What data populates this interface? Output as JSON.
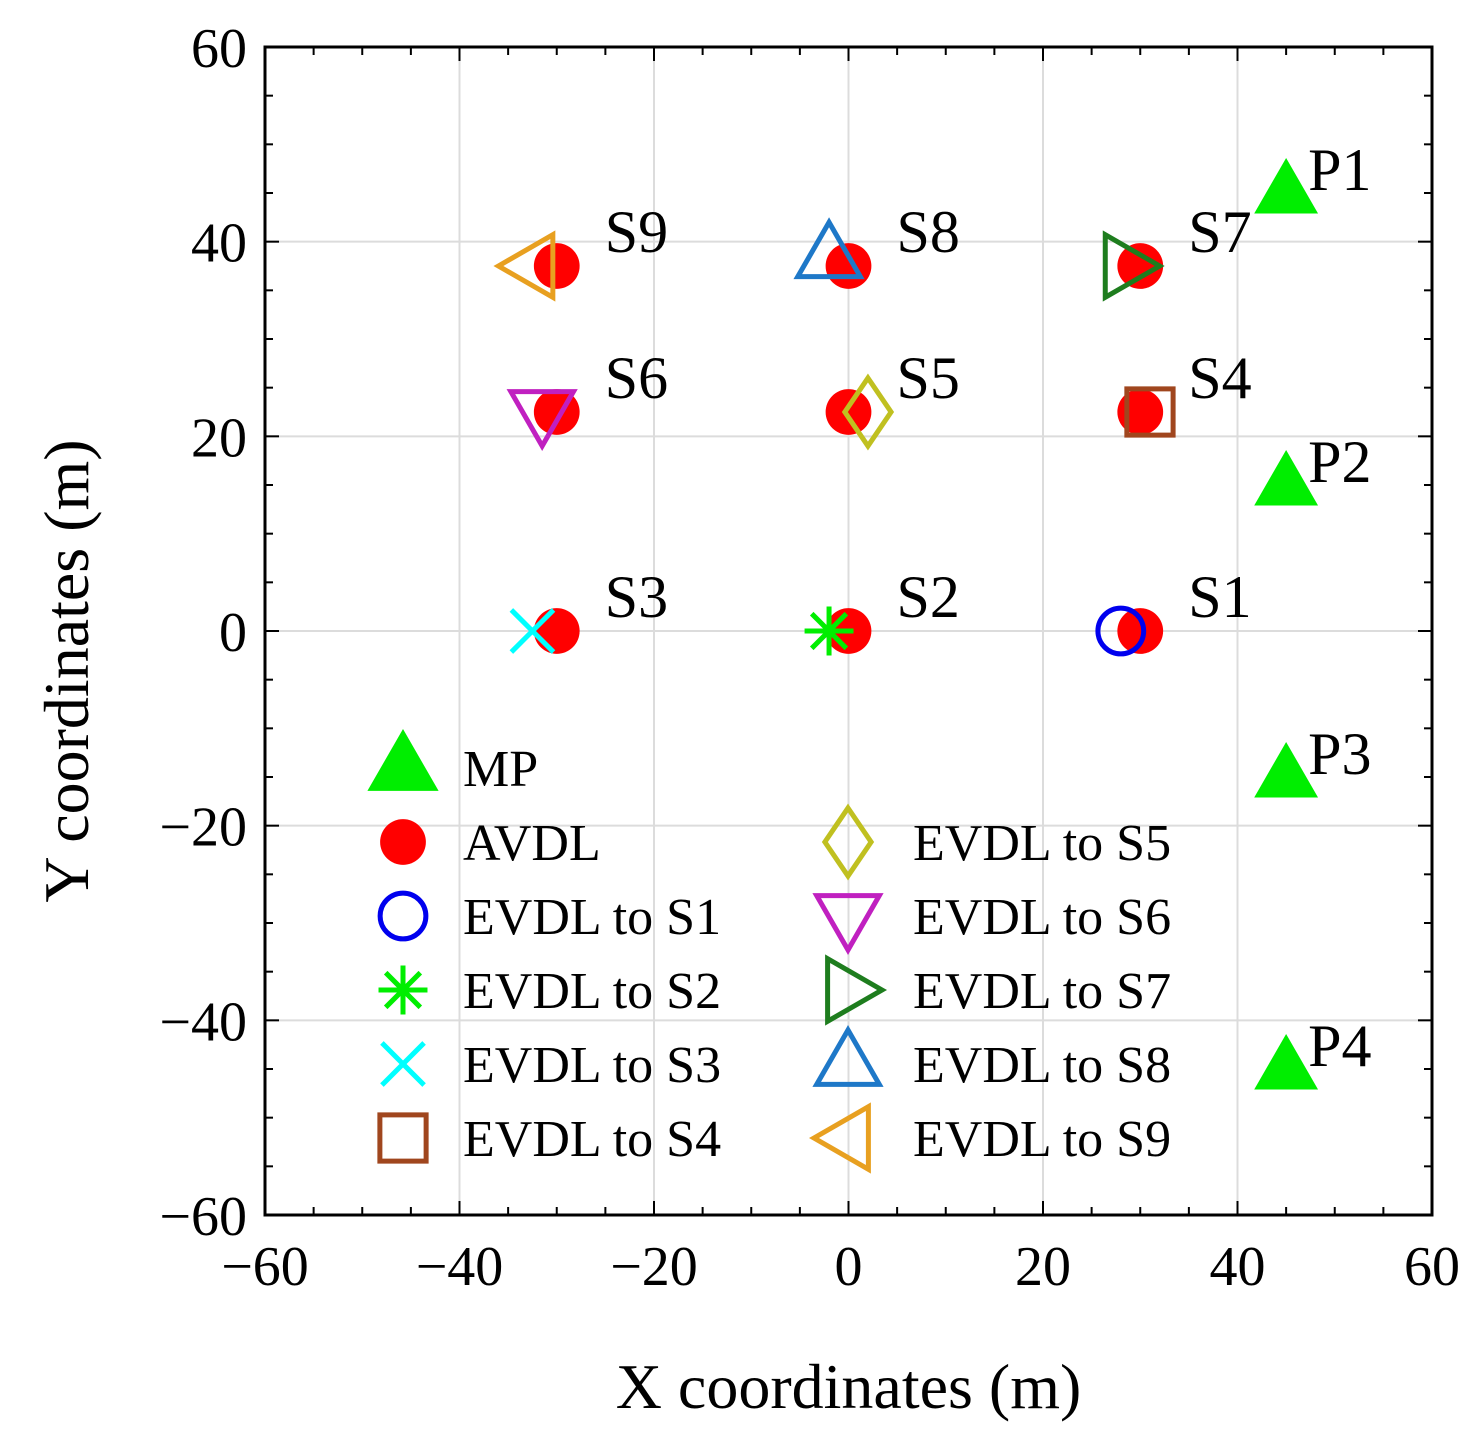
{
  "chart_data": {
    "type": "scatter",
    "title": "",
    "xlabel": "X coordinates (m)",
    "ylabel": "Y coordinates (m)",
    "xlim": [
      -60,
      60
    ],
    "ylim": [
      -60,
      60
    ],
    "xticks": [
      -60,
      -40,
      -20,
      0,
      20,
      40,
      60
    ],
    "yticks": [
      -60,
      -40,
      -20,
      0,
      20,
      40,
      60
    ],
    "xtick_labels": [
      "−60",
      "−40",
      "−20",
      "0",
      "20",
      "40",
      "60"
    ],
    "ytick_labels": [
      "−60",
      "−40",
      "−20",
      "0",
      "20",
      "40",
      "60"
    ],
    "grid": true,
    "legend_position": "bottom-center",
    "series": [
      {
        "name": "MP",
        "marker": "triangle-up",
        "filled": true,
        "color": "#00ee00",
        "points": [
          {
            "x": 45,
            "y": 45,
            "label": "P1"
          },
          {
            "x": 45,
            "y": 15,
            "label": "P2"
          },
          {
            "x": 45,
            "y": -15,
            "label": "P3"
          },
          {
            "x": 45,
            "y": -45,
            "label": "P4"
          }
        ]
      },
      {
        "name": "AVDL",
        "marker": "circle",
        "filled": true,
        "color": "#ff0000",
        "points": [
          {
            "x": 30,
            "y": 0,
            "label": "S1"
          },
          {
            "x": 0,
            "y": 0,
            "label": "S2"
          },
          {
            "x": -30,
            "y": 0,
            "label": "S3"
          },
          {
            "x": 30,
            "y": 22.5,
            "label": "S4"
          },
          {
            "x": 0,
            "y": 22.5,
            "label": "S5"
          },
          {
            "x": -30,
            "y": 22.5,
            "label": "S6"
          },
          {
            "x": 30,
            "y": 37.5,
            "label": "S7"
          },
          {
            "x": 0,
            "y": 37.5,
            "label": "S8"
          },
          {
            "x": -30,
            "y": 37.5,
            "label": "S9"
          }
        ]
      },
      {
        "name": "EVDL to S1",
        "marker": "circle",
        "filled": false,
        "color": "#0000ee",
        "points": [
          {
            "x": 28,
            "y": 0
          }
        ]
      },
      {
        "name": "EVDL to S2",
        "marker": "asterisk",
        "filled": false,
        "color": "#00ee00",
        "points": [
          {
            "x": -2,
            "y": 0
          }
        ]
      },
      {
        "name": "EVDL to S3",
        "marker": "x",
        "filled": false,
        "color": "#00ffff",
        "points": [
          {
            "x": -32.5,
            "y": 0
          }
        ]
      },
      {
        "name": "EVDL to S4",
        "marker": "square",
        "filled": false,
        "color": "#a0461e",
        "points": [
          {
            "x": 31,
            "y": 22.5
          }
        ]
      },
      {
        "name": "EVDL to S5",
        "marker": "diamond",
        "filled": false,
        "color": "#c0c020",
        "points": [
          {
            "x": 2,
            "y": 22.5
          }
        ]
      },
      {
        "name": "EVDL to S6",
        "marker": "triangle-down",
        "filled": false,
        "color": "#c020c0",
        "points": [
          {
            "x": -31.5,
            "y": 22.5
          }
        ]
      },
      {
        "name": "EVDL to S7",
        "marker": "triangle-right",
        "filled": false,
        "color": "#1e7d1e",
        "points": [
          {
            "x": 28.5,
            "y": 37.5
          }
        ]
      },
      {
        "name": "EVDL to S8",
        "marker": "triangle-up",
        "filled": false,
        "color": "#1e78c8",
        "points": [
          {
            "x": -2,
            "y": 38.5
          }
        ]
      },
      {
        "name": "EVDL to S9",
        "marker": "triangle-left",
        "filled": false,
        "color": "#e8a020",
        "points": [
          {
            "x": -32.5,
            "y": 37.5
          }
        ]
      }
    ]
  }
}
